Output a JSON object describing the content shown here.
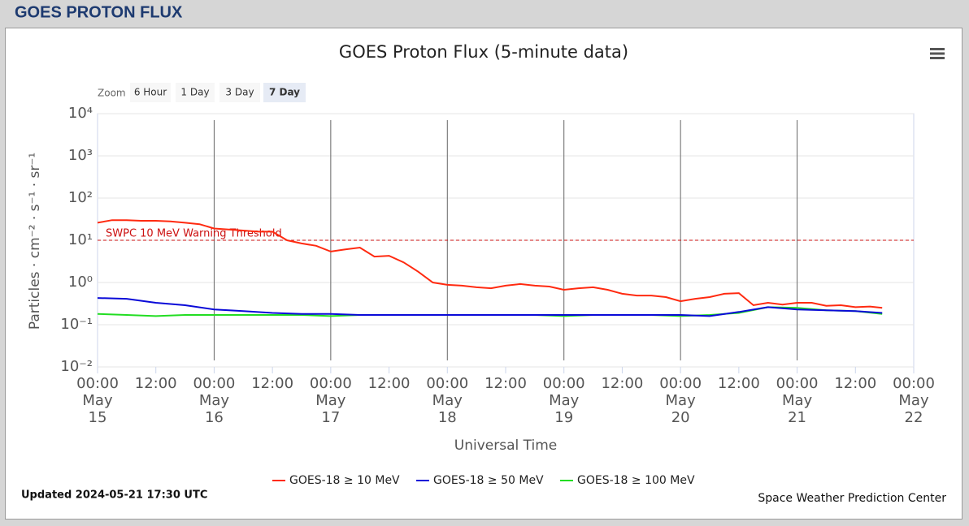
{
  "header": {
    "title": "GOES PROTON FLUX"
  },
  "chart_data": {
    "type": "line",
    "title": "GOES Proton Flux (5-minute data)",
    "zoom": {
      "label": "Zoom",
      "buttons": [
        "6 Hour",
        "1 Day",
        "3 Day",
        "7 Day"
      ],
      "selected": 3
    },
    "xlabel": "Universal Time",
    "ylabel": "Particles · cm⁻² · s⁻¹ · sr⁻¹",
    "ylog": true,
    "grid": true,
    "ylim": [
      0.01,
      10000
    ],
    "yticks": [
      {
        "value": 0.01,
        "label": "10⁻²"
      },
      {
        "value": 0.1,
        "label": "10⁻¹"
      },
      {
        "value": 1,
        "label": "10⁰"
      },
      {
        "value": 10,
        "label": "10¹"
      },
      {
        "value": 100,
        "label": "10²"
      },
      {
        "value": 1000,
        "label": "10³"
      },
      {
        "value": 10000,
        "label": "10⁴"
      }
    ],
    "xlim": [
      "May 15 00:00",
      "May 22 00:00"
    ],
    "xticks": [
      {
        "value": "May 15 00:00",
        "label": [
          "00:00",
          "May",
          "15"
        ]
      },
      {
        "value": "May 15 12:00",
        "label": [
          "12:00"
        ]
      },
      {
        "value": "May 16 00:00",
        "label": [
          "00:00",
          "May",
          "16"
        ]
      },
      {
        "value": "May 16 12:00",
        "label": [
          "12:00"
        ]
      },
      {
        "value": "May 17 00:00",
        "label": [
          "00:00",
          "May",
          "17"
        ]
      },
      {
        "value": "May 17 12:00",
        "label": [
          "12:00"
        ]
      },
      {
        "value": "May 18 00:00",
        "label": [
          "00:00",
          "May",
          "18"
        ]
      },
      {
        "value": "May 18 12:00",
        "label": [
          "12:00"
        ]
      },
      {
        "value": "May 19 00:00",
        "label": [
          "00:00",
          "May",
          "19"
        ]
      },
      {
        "value": "May 19 12:00",
        "label": [
          "12:00"
        ]
      },
      {
        "value": "May 20 00:00",
        "label": [
          "00:00",
          "May",
          "20"
        ]
      },
      {
        "value": "May 20 12:00",
        "label": [
          "12:00"
        ]
      },
      {
        "value": "May 21 00:00",
        "label": [
          "00:00",
          "May",
          "21"
        ]
      },
      {
        "value": "May 21 12:00",
        "label": [
          "12:00"
        ]
      },
      {
        "value": "May 22 00:00",
        "label": [
          "00:00",
          "May",
          "22"
        ]
      }
    ],
    "threshold": {
      "value": 10,
      "label": "SWPC 10 MeV Warning Threshold",
      "color": "#cc1111"
    },
    "series": [
      {
        "name": "GOES-18 ≥ 10 MeV",
        "color": "#ff2a10",
        "x": [
          "May 15 00:00",
          "May 15 03:00",
          "May 15 06:00",
          "May 15 09:00",
          "May 15 12:00",
          "May 15 15:00",
          "May 15 18:00",
          "May 15 21:00",
          "May 16 00:00",
          "May 16 03:00",
          "May 16 06:00",
          "May 16 09:00",
          "May 16 12:00",
          "May 16 15:00",
          "May 16 18:00",
          "May 16 21:00",
          "May 17 00:00",
          "May 17 03:00",
          "May 17 06:00",
          "May 17 09:00",
          "May 17 12:00",
          "May 17 15:00",
          "May 17 18:00",
          "May 17 21:00",
          "May 18 00:00",
          "May 18 03:00",
          "May 18 06:00",
          "May 18 09:00",
          "May 18 12:00",
          "May 18 15:00",
          "May 18 18:00",
          "May 18 21:00",
          "May 19 00:00",
          "May 19 03:00",
          "May 19 06:00",
          "May 19 09:00",
          "May 19 12:00",
          "May 19 15:00",
          "May 19 18:00",
          "May 19 21:00",
          "May 20 00:00",
          "May 20 03:00",
          "May 20 06:00",
          "May 20 09:00",
          "May 20 12:00",
          "May 20 15:00",
          "May 20 18:00",
          "May 20 21:00",
          "May 21 00:00",
          "May 21 03:00",
          "May 21 06:00",
          "May 21 09:00",
          "May 21 12:00",
          "May 21 15:00",
          "May 21 17:30"
        ],
        "values": [
          26,
          30,
          30,
          29,
          29,
          28,
          26,
          24,
          19,
          18,
          17,
          16,
          16,
          10,
          8.4,
          7.4,
          5.4,
          6.1,
          6.7,
          4.1,
          4.3,
          3.0,
          1.8,
          1.0,
          0.88,
          0.84,
          0.77,
          0.73,
          0.84,
          0.92,
          0.84,
          0.8,
          0.67,
          0.73,
          0.77,
          0.67,
          0.54,
          0.49,
          0.49,
          0.45,
          0.36,
          0.41,
          0.45,
          0.54,
          0.56,
          0.29,
          0.33,
          0.3,
          0.33,
          0.33,
          0.28,
          0.29,
          0.26,
          0.27,
          0.25
        ]
      },
      {
        "name": "GOES-18 ≥ 50 MeV",
        "color": "#0a0ad8",
        "x": [
          "May 15 00:00",
          "May 15 06:00",
          "May 15 12:00",
          "May 15 18:00",
          "May 16 00:00",
          "May 16 06:00",
          "May 16 12:00",
          "May 16 18:00",
          "May 17 00:00",
          "May 17 06:00",
          "May 17 12:00",
          "May 17 18:00",
          "May 18 00:00",
          "May 18 06:00",
          "May 18 12:00",
          "May 18 18:00",
          "May 19 00:00",
          "May 19 06:00",
          "May 19 12:00",
          "May 19 18:00",
          "May 20 00:00",
          "May 20 06:00",
          "May 20 12:00",
          "May 20 18:00",
          "May 21 00:00",
          "May 21 06:00",
          "May 21 12:00",
          "May 21 17:30"
        ],
        "values": [
          0.43,
          0.41,
          0.33,
          0.29,
          0.23,
          0.21,
          0.19,
          0.18,
          0.18,
          0.17,
          0.17,
          0.17,
          0.17,
          0.17,
          0.17,
          0.17,
          0.17,
          0.17,
          0.17,
          0.17,
          0.17,
          0.16,
          0.2,
          0.26,
          0.23,
          0.22,
          0.21,
          0.19
        ]
      },
      {
        "name": "GOES-18 ≥ 100 MeV",
        "color": "#22dd22",
        "x": [
          "May 15 00:00",
          "May 15 06:00",
          "May 15 12:00",
          "May 15 18:00",
          "May 16 00:00",
          "May 16 06:00",
          "May 16 12:00",
          "May 16 18:00",
          "May 17 00:00",
          "May 17 06:00",
          "May 17 12:00",
          "May 17 18:00",
          "May 18 00:00",
          "May 18 06:00",
          "May 18 12:00",
          "May 18 18:00",
          "May 19 00:00",
          "May 19 06:00",
          "May 19 12:00",
          "May 19 18:00",
          "May 20 00:00",
          "May 20 06:00",
          "May 20 12:00",
          "May 20 18:00",
          "May 21 00:00",
          "May 21 06:00",
          "May 21 12:00",
          "May 21 17:30"
        ],
        "values": [
          0.18,
          0.17,
          0.16,
          0.17,
          0.17,
          0.17,
          0.17,
          0.17,
          0.16,
          0.17,
          0.17,
          0.17,
          0.17,
          0.17,
          0.17,
          0.17,
          0.16,
          0.17,
          0.17,
          0.17,
          0.16,
          0.17,
          0.19,
          0.26,
          0.25,
          0.22,
          0.21,
          0.18
        ]
      }
    ],
    "updated": "Updated 2024-05-21 17:30 UTC",
    "credits": "Space Weather Prediction Center"
  }
}
